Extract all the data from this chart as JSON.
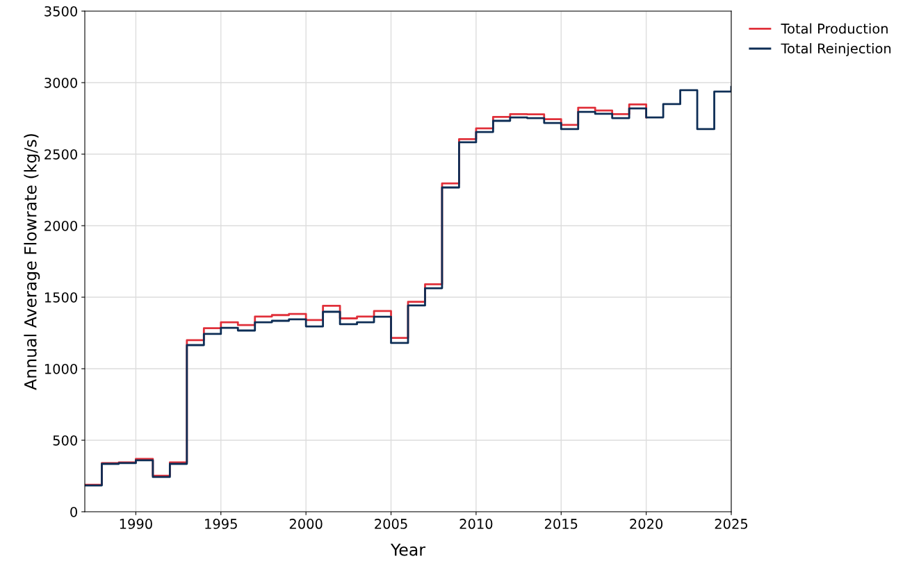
{
  "chart_data": {
    "type": "step",
    "xlabel": "Year",
    "ylabel": "Annual Average Flowrate (kg/s)",
    "x": [
      1987,
      1988,
      1989,
      1990,
      1991,
      1992,
      1993,
      1994,
      1995,
      1996,
      1997,
      1998,
      1999,
      2000,
      2001,
      2002,
      2003,
      2004,
      2005,
      2006,
      2007,
      2008,
      2009,
      2010,
      2011,
      2012,
      2013,
      2014,
      2015,
      2016,
      2017,
      2018,
      2019,
      2020,
      2021,
      2022,
      2023,
      2024,
      2025
    ],
    "series": [
      {
        "name": "Total Production",
        "color": "#e0303a",
        "x": [
          1987,
          1988,
          1989,
          1990,
          1991,
          1992,
          1993,
          1994,
          1995,
          1996,
          1997,
          1998,
          1999,
          2000,
          2001,
          2002,
          2003,
          2004,
          2005,
          2006,
          2007,
          2008,
          2009,
          2010,
          2011,
          2012,
          2013,
          2014,
          2015,
          2016,
          2017,
          2018,
          2019,
          2020
        ],
        "values": [
          189,
          340,
          345,
          370,
          252,
          345,
          1200,
          1283,
          1325,
          1305,
          1365,
          1375,
          1383,
          1340,
          1440,
          1352,
          1365,
          1403,
          1215,
          1468,
          1590,
          2295,
          2605,
          2680,
          2760,
          2780,
          2778,
          2745,
          2705,
          2825,
          2805,
          2780,
          2848,
          2757
        ]
      },
      {
        "name": "Total Reinjection",
        "color": "#0d2d55",
        "values": [
          184,
          335,
          340,
          360,
          243,
          335,
          1165,
          1243,
          1286,
          1267,
          1325,
          1335,
          1345,
          1296,
          1398,
          1311,
          1325,
          1364,
          1180,
          1442,
          1563,
          2267,
          2583,
          2655,
          2733,
          2757,
          2752,
          2718,
          2675,
          2796,
          2782,
          2752,
          2820,
          2757,
          2850,
          2947,
          2675,
          2937,
          2970
        ]
      }
    ],
    "xlim": [
      1987,
      2025
    ],
    "xticks": [
      1990,
      1995,
      2000,
      2005,
      2010,
      2015,
      2020,
      2025
    ],
    "ylim": [
      0,
      3500
    ],
    "yticks": [
      0,
      500,
      1000,
      1500,
      2000,
      2500,
      3000,
      3500
    ],
    "grid": true,
    "legend": "top right"
  }
}
